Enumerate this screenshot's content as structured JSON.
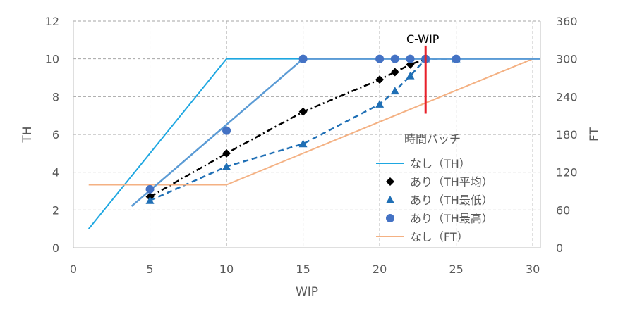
{
  "chart_data": {
    "type": "line",
    "xlabel": "WIP",
    "ylabel": "TH",
    "y2label": "FT",
    "xlim": [
      0,
      30.5
    ],
    "ylim": [
      0,
      12
    ],
    "y2lim": [
      0,
      360
    ],
    "grid": true,
    "x_ticks": [
      "0",
      "5",
      "10",
      "15",
      "20",
      "25",
      "30"
    ],
    "x_tick_values": [
      0,
      5,
      10,
      15,
      20,
      25,
      30
    ],
    "y_ticks": [
      "0",
      "2",
      "4",
      "6",
      "8",
      "10",
      "12"
    ],
    "y_tick_values": [
      0,
      2,
      4,
      6,
      8,
      10,
      12
    ],
    "y2_ticks": [
      "0",
      "60",
      "120",
      "180",
      "240",
      "300",
      "360"
    ],
    "y2_tick_values": [
      0,
      60,
      120,
      180,
      240,
      300,
      360
    ],
    "legend_title": "時間バッチ",
    "legend_position": "right",
    "annotation": {
      "text": "C-WIP",
      "x": 23,
      "y_from": 7.1,
      "y_to": 10.7
    },
    "series": [
      {
        "name": "なし（TH）",
        "axis": "left",
        "style": "line",
        "color": "#1ea7e1",
        "x": [
          1,
          10,
          30.5
        ],
        "y": [
          1,
          10,
          10
        ]
      },
      {
        "name": "あり（TH平均）",
        "axis": "left",
        "style": "dashdot-diamond",
        "color": "#000000",
        "x": [
          5,
          10,
          15,
          20,
          21,
          22,
          23
        ],
        "y": [
          2.7,
          5.0,
          7.2,
          8.9,
          9.3,
          9.7,
          10.0
        ]
      },
      {
        "name": "あり（TH最低）",
        "axis": "left",
        "style": "dash-triangle",
        "color": "#1f6fb5",
        "x": [
          5,
          10,
          15,
          20,
          21,
          22,
          23,
          25
        ],
        "y": [
          2.5,
          4.3,
          5.5,
          7.6,
          8.3,
          9.1,
          10.0,
          10.0
        ]
      },
      {
        "name": "あり（TH最高）",
        "axis": "left",
        "style": "circle",
        "color": "#4472c4",
        "x": [
          5,
          10,
          15,
          20,
          21,
          22,
          23,
          25
        ],
        "y": [
          3.1,
          6.2,
          10.0,
          10.0,
          10.0,
          10.0,
          10.0,
          10.0
        ]
      },
      {
        "name": "なし（FT）",
        "axis": "right",
        "style": "line",
        "color": "#f4b183",
        "x": [
          1,
          10,
          30
        ],
        "y": [
          100,
          100,
          300
        ]
      }
    ],
    "fit_line": {
      "color": "#5b9bd5",
      "x": [
        3.8,
        15,
        30.5
      ],
      "y": [
        2.2,
        10.0,
        10.0
      ]
    }
  }
}
